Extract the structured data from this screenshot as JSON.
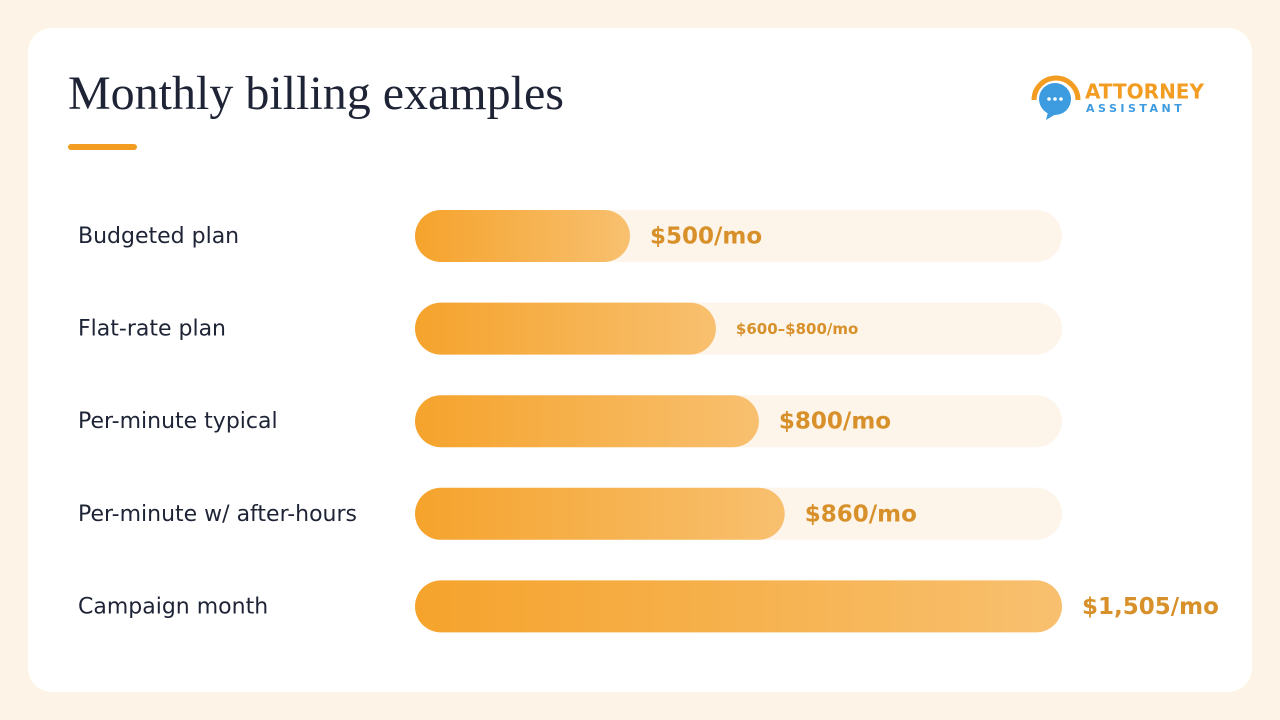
{
  "chart_data": {
    "type": "bar",
    "orientation": "horizontal",
    "title": "Monthly billing examples",
    "categories": [
      "Budgeted plan",
      "Flat-rate plan",
      "Per-minute typical",
      "Per-minute w/ after-hours",
      "Campaign month"
    ],
    "values": [
      500,
      700,
      800,
      860,
      1505
    ],
    "value_labels": [
      "$500/mo",
      "$600–$800/mo",
      "$800/mo",
      "$860/mo",
      "$1,505/mo"
    ],
    "xlim": [
      0,
      1505
    ],
    "color": "#f5a32c"
  },
  "logo": {
    "line1": "ATTORNEY",
    "line2": "ASSISTANT"
  }
}
